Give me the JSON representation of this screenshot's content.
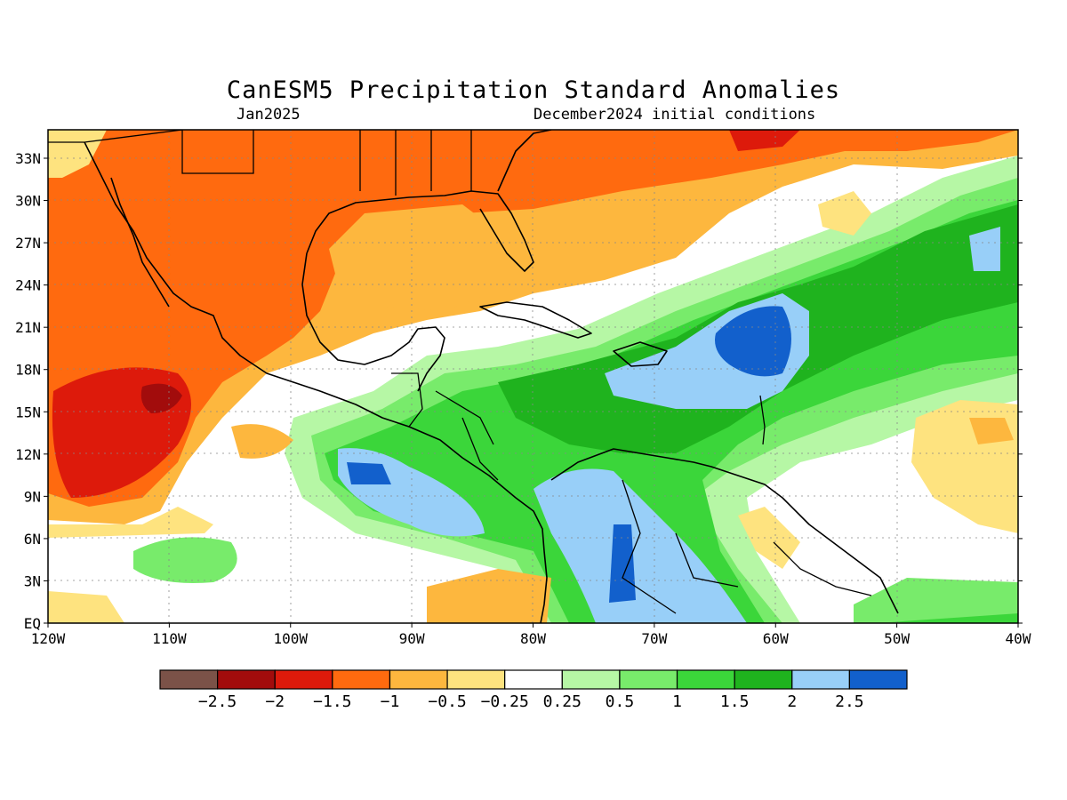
{
  "title": "CanESM5 Precipitation Standard Anomalies",
  "subtitle_left": "Jan2025",
  "subtitle_right": "December2024 initial conditions",
  "map": {
    "lat_labels": [
      "33N",
      "30N",
      "27N",
      "24N",
      "21N",
      "18N",
      "15N",
      "12N",
      "9N",
      "6N",
      "3N",
      "EQ"
    ],
    "lon_labels": [
      "120W",
      "110W",
      "100W",
      "90W",
      "80W",
      "70W",
      "60W",
      "50W",
      "40W"
    ],
    "lon_range": [
      -120,
      -40
    ],
    "lat_range": [
      0,
      35
    ],
    "grid": "dotted"
  },
  "colorbar": {
    "colors": [
      "#7b5248",
      "#a20c0c",
      "#dd1a0b",
      "#ff6a0f",
      "#fdb73e",
      "#fee37f",
      "#ffffff",
      "#b6f7a5",
      "#78eb6b",
      "#3bd63a",
      "#1fb31e",
      "#98cff8",
      "#1260cc"
    ],
    "labels": [
      "−2.5",
      "−2",
      "−1.5",
      "−1",
      "−0.5",
      "−0.25",
      "0.25",
      "0.5",
      "1",
      "1.5",
      "2",
      "2.5"
    ]
  }
}
